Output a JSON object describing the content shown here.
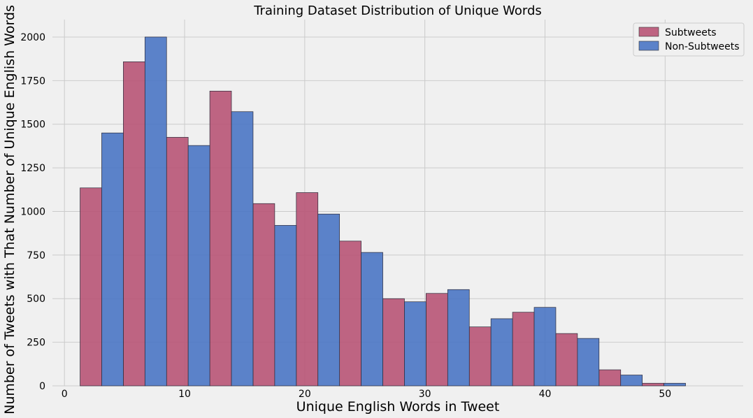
{
  "chart_data": {
    "type": "bar",
    "title": "Training Dataset Distribution of Unique Words",
    "xlabel": "Unique English Words in Tweet",
    "ylabel": "Number of Tweets with That Number of Unique English Words",
    "xlim": [
      -1,
      56.5
    ],
    "ylim": [
      0,
      2100
    ],
    "xticks": [
      0,
      10,
      20,
      30,
      40,
      50
    ],
    "yticks": [
      0,
      250,
      500,
      750,
      1000,
      1250,
      1500,
      1750,
      2000
    ],
    "grid": true,
    "legend_position": "top-right",
    "bin_width": 3.6,
    "bin_starts": [
      1.3,
      4.9,
      8.5,
      12.1,
      15.7,
      19.3,
      22.9,
      26.5,
      30.1,
      33.7,
      37.3,
      40.9,
      44.5,
      48.1
    ],
    "series": [
      {
        "name": "Subtweets",
        "color": "#b85475",
        "values": [
          1135,
          1858,
          1425,
          1690,
          1045,
          1108,
          830,
          500,
          530,
          338,
          422,
          300,
          92,
          15
        ]
      },
      {
        "name": "Non-Subtweets",
        "color": "#4a76c4",
        "values": [
          1450,
          2000,
          1378,
          1572,
          920,
          985,
          765,
          482,
          552,
          385,
          450,
          272,
          62,
          15
        ]
      }
    ]
  }
}
